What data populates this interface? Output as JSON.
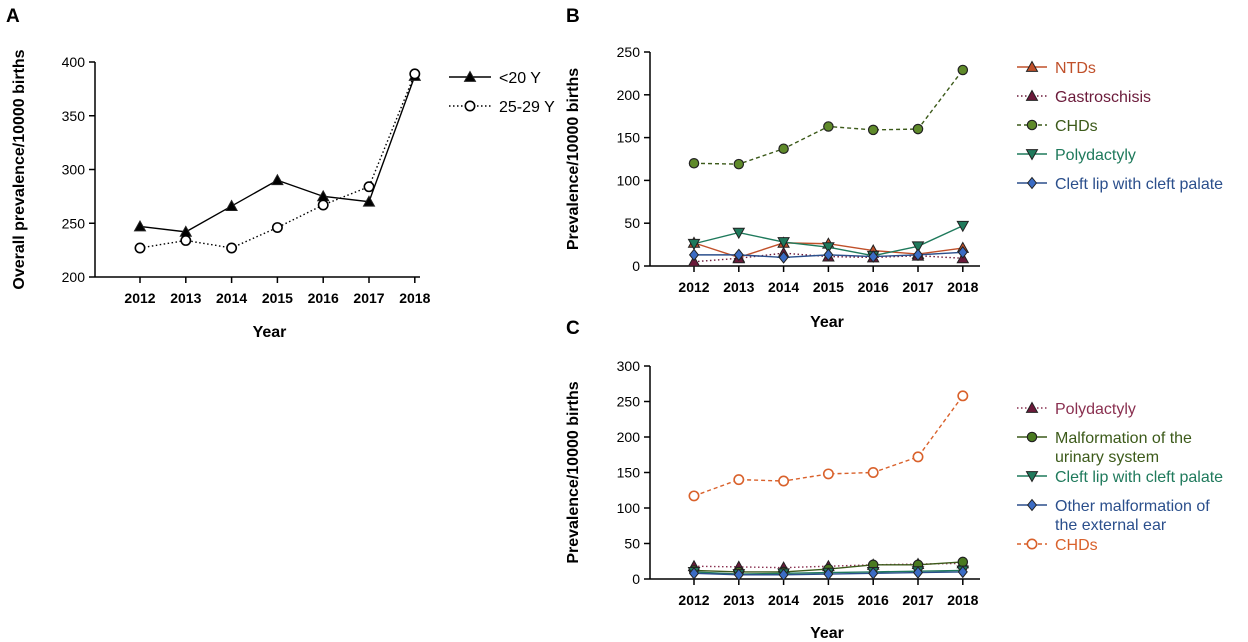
{
  "chart_data": [
    {
      "panel": "A",
      "type": "line",
      "title": "",
      "xlabel": "Year",
      "ylabel": "Overall prevalence/10000 births",
      "categories": [
        "2012",
        "2013",
        "2014",
        "2015",
        "2016",
        "2017",
        "2018"
      ],
      "ylim": [
        200,
        400
      ],
      "yticks": [
        "200",
        "250",
        "300",
        "350",
        "400"
      ],
      "grid": false,
      "legend": "right",
      "series": [
        {
          "name": "<20 Y",
          "color": "#000000",
          "dash": "solid",
          "marker": "triangle-up",
          "fill": "#000000",
          "values": [
            247,
            242,
            266,
            290,
            275,
            270,
            387
          ]
        },
        {
          "name": "25-29 Y",
          "color": "#000000",
          "dash": "dotted",
          "marker": "circle-open",
          "fill": "#ffffff",
          "values": [
            227,
            234,
            227,
            246,
            267,
            284,
            389
          ]
        }
      ]
    },
    {
      "panel": "B",
      "type": "line",
      "title": "",
      "xlabel": "Year",
      "ylabel": "Prevalence/10000 births",
      "categories": [
        "2012",
        "2013",
        "2014",
        "2015",
        "2016",
        "2017",
        "2018"
      ],
      "ylim": [
        0,
        250
      ],
      "yticks": [
        "0",
        "50",
        "100",
        "150",
        "200",
        "250"
      ],
      "grid": false,
      "legend": "right",
      "series": [
        {
          "name": "NTDs",
          "color": "#c0502a",
          "dash": "solid",
          "marker": "triangle-up",
          "fill": "#c0502a",
          "values": [
            27,
            10,
            27,
            26,
            18,
            14,
            21
          ]
        },
        {
          "name": "Gastroschisis",
          "color": "#6b1a3a",
          "dash": "dotted",
          "marker": "triangle-up",
          "fill": "#6b1a3a",
          "values": [
            5,
            9,
            15,
            11,
            10,
            12,
            9
          ]
        },
        {
          "name": "CHDs",
          "color": "#3c5a1a",
          "dash": "dashed",
          "marker": "circle",
          "fill": "#5f8a2a",
          "values": [
            120,
            119,
            137,
            163,
            159,
            160,
            229
          ]
        },
        {
          "name": "Polydactyly",
          "color": "#1f7a5c",
          "dash": "solid",
          "marker": "triangle-down",
          "fill": "#1f7a5c",
          "values": [
            26,
            39,
            28,
            22,
            12,
            23,
            47
          ]
        },
        {
          "name": "Cleft lip with cleft palate",
          "color": "#2b4f8c",
          "dash": "solid",
          "marker": "diamond",
          "fill": "#3b6cc4",
          "values": [
            13,
            13,
            10,
            13,
            11,
            13,
            16
          ]
        }
      ]
    },
    {
      "panel": "C",
      "type": "line",
      "title": "",
      "xlabel": "Year",
      "ylabel": "Prevalence/10000 births",
      "categories": [
        "2012",
        "2013",
        "2014",
        "2015",
        "2016",
        "2017",
        "2018"
      ],
      "ylim": [
        0,
        300
      ],
      "yticks": [
        "0",
        "50",
        "100",
        "150",
        "200",
        "250",
        "300"
      ],
      "grid": false,
      "legend": "right",
      "series": [
        {
          "name": "Polydactyly",
          "color": "#8a3050",
          "dash": "dotted",
          "marker": "triangle-up",
          "fill": "#6b1a3a",
          "values": [
            18,
            17,
            16,
            18,
            20,
            21,
            22
          ]
        },
        {
          "name": [
            "Malformation of the",
            "urinary system"
          ],
          "color": "#3c5a1a",
          "dash": "solid",
          "marker": "circle",
          "fill": "#4a7a20",
          "values": [
            12,
            10,
            10,
            14,
            20,
            20,
            24
          ]
        },
        {
          "name": "Cleft lip with cleft palate",
          "color": "#1f7a5c",
          "dash": "solid",
          "marker": "triangle-down",
          "fill": "#1f7a5c",
          "values": [
            10,
            7,
            8,
            9,
            10,
            11,
            12
          ]
        },
        {
          "name": [
            "Other malformation of",
            "the external ear"
          ],
          "color": "#2b4f8c",
          "dash": "solid",
          "marker": "diamond",
          "fill": "#3b6cc4",
          "values": [
            8,
            6,
            6,
            7,
            8,
            9,
            10
          ]
        },
        {
          "name": "CHDs",
          "color": "#d9612b",
          "dash": "dashed",
          "marker": "circle-open",
          "fill": "#ffffff",
          "values": [
            117,
            140,
            138,
            148,
            150,
            172,
            258
          ]
        }
      ]
    }
  ]
}
